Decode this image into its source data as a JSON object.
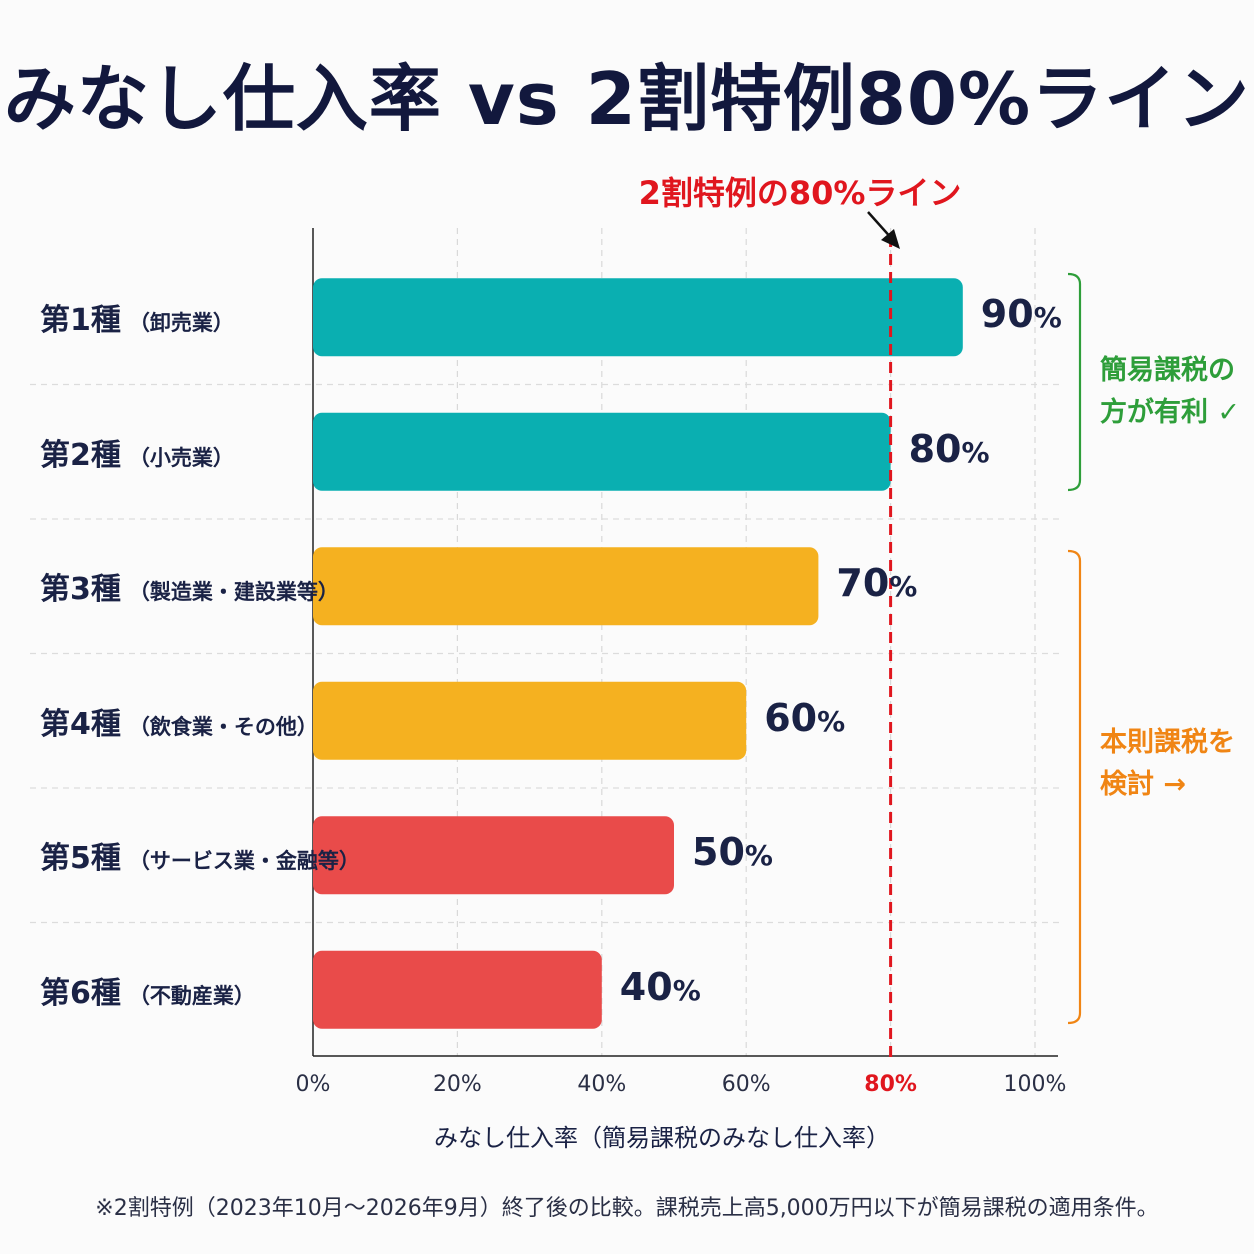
{
  "title": "みなし仕入率 vs 2割特例80%ライン",
  "chart_data": {
    "type": "bar",
    "orientation": "horizontal",
    "categories": [
      {
        "main": "第1種",
        "sub": "（卸売業）"
      },
      {
        "main": "第2種",
        "sub": "（小売業）"
      },
      {
        "main": "第3種",
        "sub": "（製造業・建設業等）"
      },
      {
        "main": "第4種",
        "sub": "（飲食業・その他）"
      },
      {
        "main": "第5種",
        "sub": "（サービス業・金融等）"
      },
      {
        "main": "第6種",
        "sub": "（不動産業）"
      }
    ],
    "values": [
      90,
      80,
      70,
      60,
      50,
      40
    ],
    "value_labels": [
      "90",
      "80",
      "70",
      "60",
      "50",
      "40"
    ],
    "value_suffix": "%",
    "bar_colors": [
      "#0aafb1",
      "#0aafb1",
      "#f5b120",
      "#f5b120",
      "#e94b4a",
      "#e94b4a"
    ],
    "xlim": [
      0,
      100
    ],
    "x_ticks": [
      "0%",
      "20%",
      "40%",
      "60%",
      "80%",
      "100%"
    ],
    "x_tick_values": [
      0,
      20,
      40,
      60,
      80,
      100
    ],
    "xlabel": "みなし仕入率（簡易課税のみなし仕入率）",
    "threshold": {
      "value": 80,
      "label": "2割特例の80%ライン",
      "color": "#e0161e"
    },
    "grid": true
  },
  "annotations": {
    "simplified": {
      "lines": [
        "簡易課税の",
        "方が有利 ✓"
      ],
      "color": "#2e9e3a"
    },
    "principle": {
      "lines": [
        "本則課税を",
        "検討 →"
      ],
      "color": "#f08514"
    }
  },
  "footnote": "※2割特例（2023年10月〜2026年9月）終了後の比較。課税売上高5,000万円以下が簡易課税の適用条件。"
}
